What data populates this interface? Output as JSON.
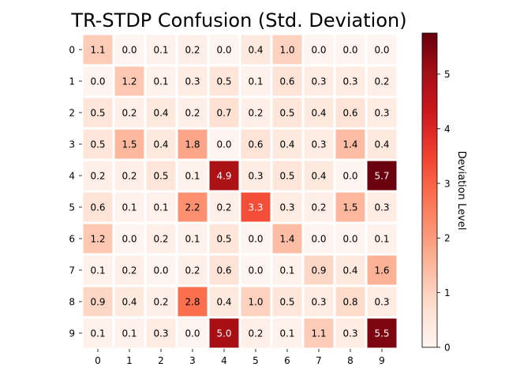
{
  "chart_data": {
    "type": "heatmap",
    "title": "TR-STDP Confusion (Std. Deviation)",
    "x_categories": [
      "0",
      "1",
      "2",
      "3",
      "4",
      "5",
      "6",
      "7",
      "8",
      "9"
    ],
    "y_categories": [
      "0",
      "1",
      "2",
      "3",
      "4",
      "5",
      "6",
      "7",
      "8",
      "9"
    ],
    "values": [
      [
        1.1,
        0.0,
        0.1,
        0.2,
        0.0,
        0.4,
        1.0,
        0.0,
        0.0,
        0.0
      ],
      [
        0.0,
        1.2,
        0.1,
        0.3,
        0.5,
        0.1,
        0.6,
        0.3,
        0.3,
        0.2
      ],
      [
        0.5,
        0.2,
        0.4,
        0.2,
        0.7,
        0.2,
        0.5,
        0.4,
        0.6,
        0.3
      ],
      [
        0.5,
        1.5,
        0.4,
        1.8,
        0.0,
        0.6,
        0.4,
        0.3,
        1.4,
        0.4
      ],
      [
        0.2,
        0.2,
        0.5,
        0.1,
        4.9,
        0.3,
        0.5,
        0.4,
        0.0,
        5.7
      ],
      [
        0.6,
        0.1,
        0.1,
        2.2,
        0.2,
        3.3,
        0.3,
        0.2,
        1.5,
        0.3
      ],
      [
        1.2,
        0.0,
        0.2,
        0.1,
        0.5,
        0.0,
        1.4,
        0.0,
        0.0,
        0.1
      ],
      [
        0.1,
        0.2,
        0.0,
        0.2,
        0.6,
        0.0,
        0.1,
        0.9,
        0.4,
        1.6
      ],
      [
        0.9,
        0.4,
        0.2,
        2.8,
        0.4,
        1.0,
        0.5,
        0.3,
        0.8,
        0.3
      ],
      [
        0.1,
        0.1,
        0.3,
        0.0,
        5.0,
        0.2,
        0.1,
        1.1,
        0.3,
        5.5
      ]
    ],
    "colormap": "Reds",
    "value_range": [
      0,
      5.75
    ],
    "colorbar": {
      "label": "Deviation Level",
      "ticks": [
        0,
        1,
        2,
        3,
        4,
        5
      ]
    },
    "annotations": true
  }
}
